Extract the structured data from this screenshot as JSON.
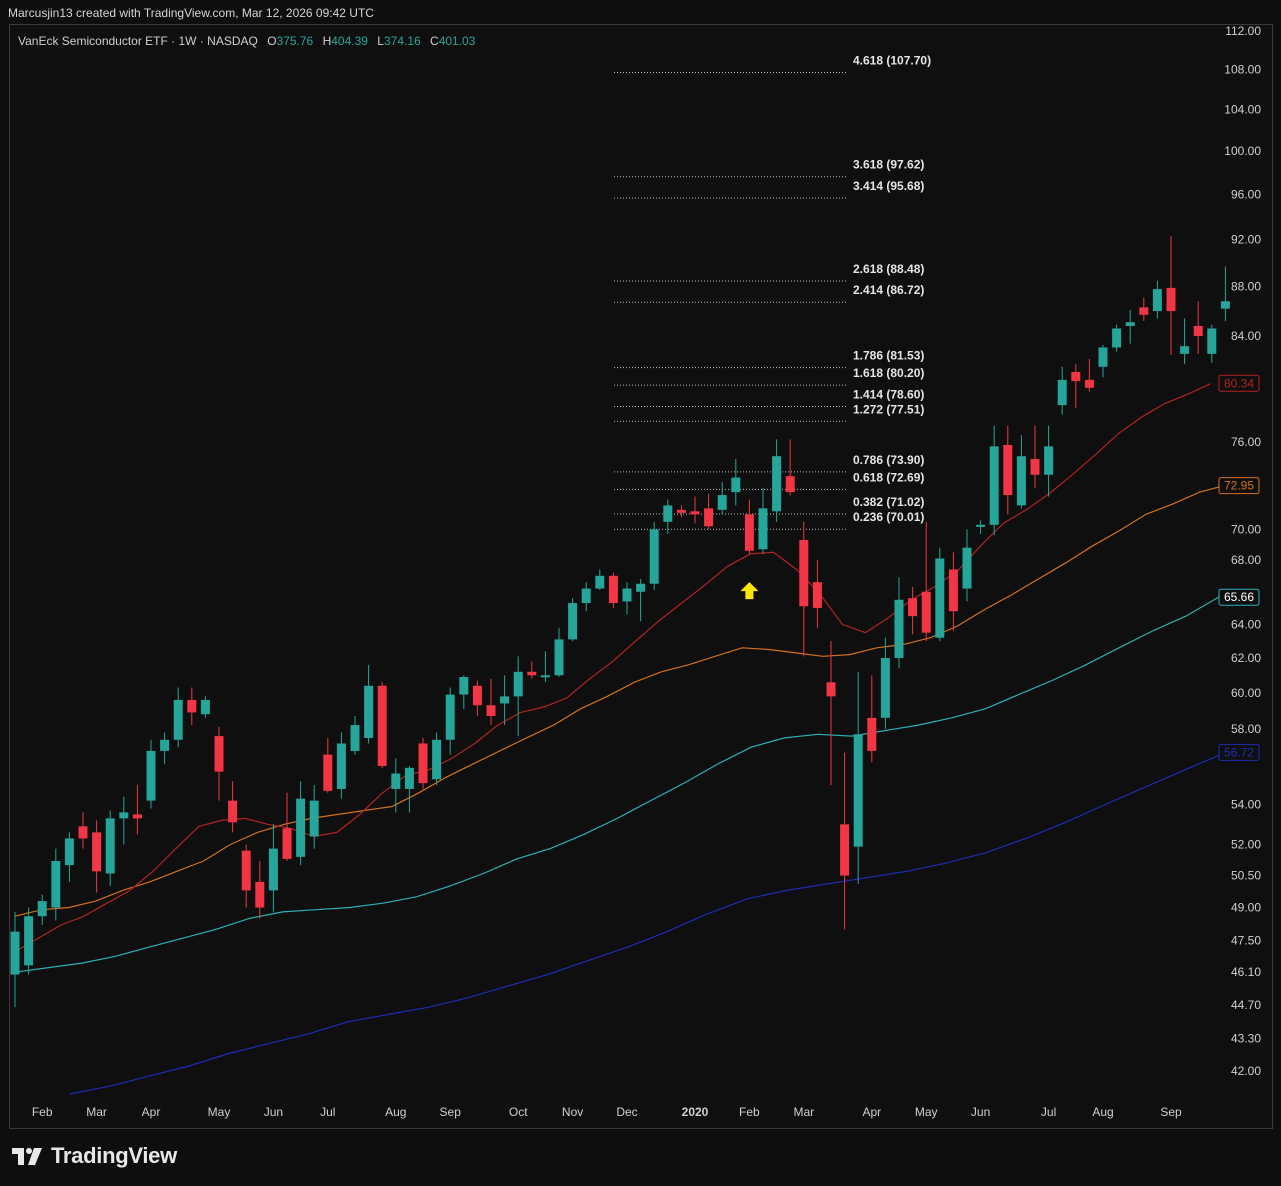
{
  "header": {
    "credit": "Marcusjin13 created with TradingView.com, Mar 12, 2026 09:42 UTC"
  },
  "symbol": {
    "title": "VanEck Semiconductor ETF · 1W · NASDAQ",
    "o_label": "O",
    "o_value": "375.76",
    "h_label": "H",
    "h_value": "404.39",
    "l_label": "L",
    "l_value": "374.16",
    "c_label": "C",
    "c_value": "401.03"
  },
  "logo": {
    "text": "TradingView",
    "icon": "tradingview-logo-icon"
  },
  "colors": {
    "up": "#26a69a",
    "down": "#f23645",
    "ema20": "#b22222",
    "ema50": "#d4701c",
    "ema100": "#2bb0b8",
    "ema200": "#1e2bb5",
    "arrow": "#ffe600"
  },
  "chart_data": {
    "type": "candlestick",
    "y_scale": "log",
    "ylim": [
      40.9,
      112.6
    ],
    "y_ticks": [
      "112.00",
      "108.00",
      "104.00",
      "100.00",
      "96.00",
      "92.00",
      "88.00",
      "84.00",
      "76.00",
      "70.00",
      "68.00",
      "64.00",
      "62.00",
      "60.00",
      "58.00",
      "54.00",
      "52.00",
      "50.50",
      "49.00",
      "47.50",
      "46.10",
      "44.70",
      "43.30",
      "42.00"
    ],
    "x_labels": [
      "Feb",
      "Mar",
      "Apr",
      "May",
      "Jun",
      "Jul",
      "Aug",
      "Sep",
      "Oct",
      "Nov",
      "Dec",
      "2020",
      "Feb",
      "Mar",
      "Apr",
      "May",
      "Jun",
      "Jul",
      "Aug",
      "Sep"
    ],
    "fib_levels": [
      {
        "label": "4.618 (107.70)",
        "value": 107.7
      },
      {
        "label": "3.618 (97.62)",
        "value": 97.62
      },
      {
        "label": "3.414 (95.68)",
        "value": 95.68
      },
      {
        "label": "2.618 (88.48)",
        "value": 88.48
      },
      {
        "label": "2.414 (86.72)",
        "value": 86.72
      },
      {
        "label": "1.786 (81.53)",
        "value": 81.53
      },
      {
        "label": "1.618 (80.20)",
        "value": 80.2
      },
      {
        "label": "1.414 (78.60)",
        "value": 78.6
      },
      {
        "label": "1.272 (77.51)",
        "value": 77.51
      },
      {
        "label": "0.786 (73.90)",
        "value": 73.9
      },
      {
        "label": "0.618 (72.69)",
        "value": 72.69
      },
      {
        "label": "0.382 (71.02)",
        "value": 71.02
      },
      {
        "label": "0.236 (70.01)",
        "value": 70.01
      }
    ],
    "ma_badges": [
      {
        "label": "80.34",
        "value": 80.34,
        "series": "ema20"
      },
      {
        "label": "72.95",
        "value": 72.95,
        "series": "ema50"
      },
      {
        "label": "65.66",
        "value": 65.66,
        "series": "ema100"
      },
      {
        "label": "56.72",
        "value": 56.72,
        "series": "ema200"
      }
    ],
    "candles": [
      {
        "o": 46.0,
        "h": 48.8,
        "l": 44.6,
        "c": 47.9
      },
      {
        "o": 46.4,
        "h": 49.0,
        "l": 46.0,
        "c": 48.6
      },
      {
        "o": 48.6,
        "h": 49.6,
        "l": 48.2,
        "c": 49.3
      },
      {
        "o": 49.0,
        "h": 51.8,
        "l": 48.4,
        "c": 51.2
      },
      {
        "o": 51.0,
        "h": 52.6,
        "l": 50.2,
        "c": 52.3
      },
      {
        "o": 52.9,
        "h": 53.6,
        "l": 51.8,
        "c": 52.3
      },
      {
        "o": 52.6,
        "h": 53.2,
        "l": 49.7,
        "c": 50.7
      },
      {
        "o": 50.6,
        "h": 53.7,
        "l": 50.0,
        "c": 53.3
      },
      {
        "o": 53.3,
        "h": 54.4,
        "l": 52.0,
        "c": 53.6
      },
      {
        "o": 53.5,
        "h": 55.0,
        "l": 52.5,
        "c": 53.3
      },
      {
        "o": 54.2,
        "h": 57.4,
        "l": 53.8,
        "c": 56.8
      },
      {
        "o": 56.8,
        "h": 57.8,
        "l": 56.1,
        "c": 57.4
      },
      {
        "o": 57.4,
        "h": 60.3,
        "l": 57.0,
        "c": 59.6
      },
      {
        "o": 59.6,
        "h": 60.3,
        "l": 58.2,
        "c": 58.9
      },
      {
        "o": 58.8,
        "h": 59.8,
        "l": 58.6,
        "c": 59.6
      },
      {
        "o": 57.6,
        "h": 58.1,
        "l": 54.2,
        "c": 55.7
      },
      {
        "o": 54.2,
        "h": 55.2,
        "l": 52.6,
        "c": 53.1
      },
      {
        "o": 51.7,
        "h": 52.0,
        "l": 49.0,
        "c": 49.8
      },
      {
        "o": 50.2,
        "h": 51.2,
        "l": 48.5,
        "c": 49.0
      },
      {
        "o": 49.8,
        "h": 53.0,
        "l": 48.8,
        "c": 51.8
      },
      {
        "o": 52.8,
        "h": 54.6,
        "l": 51.2,
        "c": 51.3
      },
      {
        "o": 51.4,
        "h": 55.2,
        "l": 51.0,
        "c": 54.3
      },
      {
        "o": 52.4,
        "h": 55.0,
        "l": 51.8,
        "c": 54.2
      },
      {
        "o": 56.6,
        "h": 57.5,
        "l": 54.6,
        "c": 54.7
      },
      {
        "o": 54.8,
        "h": 57.8,
        "l": 54.3,
        "c": 57.2
      },
      {
        "o": 56.8,
        "h": 58.7,
        "l": 56.6,
        "c": 58.2
      },
      {
        "o": 57.5,
        "h": 61.6,
        "l": 57.2,
        "c": 60.4
      },
      {
        "o": 60.4,
        "h": 60.6,
        "l": 55.9,
        "c": 56.0
      },
      {
        "o": 54.8,
        "h": 56.4,
        "l": 53.6,
        "c": 55.6
      },
      {
        "o": 54.8,
        "h": 56.0,
        "l": 53.6,
        "c": 55.9
      },
      {
        "o": 57.2,
        "h": 57.5,
        "l": 54.8,
        "c": 55.1
      },
      {
        "o": 55.3,
        "h": 57.8,
        "l": 55.0,
        "c": 57.4
      },
      {
        "o": 57.4,
        "h": 60.3,
        "l": 56.6,
        "c": 59.9
      },
      {
        "o": 59.9,
        "h": 61.0,
        "l": 59.1,
        "c": 60.9
      },
      {
        "o": 60.4,
        "h": 60.7,
        "l": 58.7,
        "c": 59.3
      },
      {
        "o": 59.3,
        "h": 60.8,
        "l": 58.2,
        "c": 58.7
      },
      {
        "o": 59.4,
        "h": 61.0,
        "l": 58.2,
        "c": 59.8
      },
      {
        "o": 59.8,
        "h": 62.1,
        "l": 57.6,
        "c": 61.2
      },
      {
        "o": 61.2,
        "h": 61.8,
        "l": 60.8,
        "c": 61.0
      },
      {
        "o": 61.0,
        "h": 62.4,
        "l": 60.6,
        "c": 61.0
      },
      {
        "o": 61.0,
        "h": 63.8,
        "l": 60.9,
        "c": 63.1
      },
      {
        "o": 63.1,
        "h": 65.6,
        "l": 63.0,
        "c": 65.3
      },
      {
        "o": 65.3,
        "h": 66.6,
        "l": 64.8,
        "c": 66.2
      },
      {
        "o": 66.2,
        "h": 67.4,
        "l": 66.1,
        "c": 67.0
      },
      {
        "o": 67.0,
        "h": 67.2,
        "l": 65.0,
        "c": 65.3
      },
      {
        "o": 65.4,
        "h": 66.6,
        "l": 64.6,
        "c": 66.2
      },
      {
        "o": 66.0,
        "h": 66.8,
        "l": 64.2,
        "c": 66.5
      },
      {
        "o": 66.5,
        "h": 70.5,
        "l": 66.1,
        "c": 70.0
      },
      {
        "o": 70.5,
        "h": 72.0,
        "l": 69.7,
        "c": 71.6
      },
      {
        "o": 71.3,
        "h": 71.6,
        "l": 70.8,
        "c": 71.1
      },
      {
        "o": 71.2,
        "h": 72.2,
        "l": 70.4,
        "c": 71.0
      },
      {
        "o": 71.4,
        "h": 72.4,
        "l": 70.0,
        "c": 70.2
      },
      {
        "o": 71.3,
        "h": 73.2,
        "l": 71.0,
        "c": 72.3
      },
      {
        "o": 72.5,
        "h": 74.8,
        "l": 71.6,
        "c": 73.5
      },
      {
        "o": 71.0,
        "h": 72.0,
        "l": 68.4,
        "c": 68.6
      },
      {
        "o": 68.7,
        "h": 72.8,
        "l": 68.4,
        "c": 71.4
      },
      {
        "o": 71.2,
        "h": 76.2,
        "l": 70.5,
        "c": 75.0
      },
      {
        "o": 73.6,
        "h": 76.2,
        "l": 72.3,
        "c": 72.5
      },
      {
        "o": 69.3,
        "h": 70.5,
        "l": 62.1,
        "c": 65.1
      },
      {
        "o": 66.6,
        "h": 68.0,
        "l": 63.8,
        "c": 65.0
      },
      {
        "o": 60.6,
        "h": 63.0,
        "l": 55.0,
        "c": 59.8
      },
      {
        "o": 53.0,
        "h": 56.7,
        "l": 48.0,
        "c": 50.5
      },
      {
        "o": 51.9,
        "h": 61.2,
        "l": 50.1,
        "c": 57.7
      },
      {
        "o": 58.6,
        "h": 61.0,
        "l": 56.2,
        "c": 56.8
      },
      {
        "o": 58.6,
        "h": 63.2,
        "l": 58.0,
        "c": 62.0
      },
      {
        "o": 62.0,
        "h": 66.9,
        "l": 61.4,
        "c": 65.5
      },
      {
        "o": 65.6,
        "h": 66.3,
        "l": 63.4,
        "c": 64.5
      },
      {
        "o": 66.0,
        "h": 70.5,
        "l": 63.0,
        "c": 63.5
      },
      {
        "o": 63.2,
        "h": 68.8,
        "l": 63.0,
        "c": 68.1
      },
      {
        "o": 67.4,
        "h": 68.5,
        "l": 63.6,
        "c": 64.8
      },
      {
        "o": 66.2,
        "h": 70.0,
        "l": 65.4,
        "c": 68.8
      },
      {
        "o": 70.3,
        "h": 70.6,
        "l": 69.7,
        "c": 70.3
      },
      {
        "o": 70.3,
        "h": 77.2,
        "l": 69.6,
        "c": 75.7
      },
      {
        "o": 75.8,
        "h": 77.2,
        "l": 71.0,
        "c": 72.3
      },
      {
        "o": 71.6,
        "h": 76.5,
        "l": 71.4,
        "c": 75.0
      },
      {
        "o": 74.8,
        "h": 77.2,
        "l": 72.8,
        "c": 73.7
      },
      {
        "o": 73.7,
        "h": 77.2,
        "l": 72.2,
        "c": 75.7
      },
      {
        "o": 78.7,
        "h": 81.6,
        "l": 78.0,
        "c": 80.6
      },
      {
        "o": 81.2,
        "h": 81.8,
        "l": 78.5,
        "c": 80.5
      },
      {
        "o": 80.6,
        "h": 82.2,
        "l": 79.7,
        "c": 80.0
      },
      {
        "o": 81.6,
        "h": 83.3,
        "l": 80.8,
        "c": 83.1
      },
      {
        "o": 83.1,
        "h": 84.9,
        "l": 82.8,
        "c": 84.6
      },
      {
        "o": 84.8,
        "h": 86.1,
        "l": 83.4,
        "c": 85.1
      },
      {
        "o": 86.3,
        "h": 87.1,
        "l": 85.2,
        "c": 85.7
      },
      {
        "o": 86.0,
        "h": 88.5,
        "l": 85.4,
        "c": 87.8
      },
      {
        "o": 87.9,
        "h": 92.3,
        "l": 82.5,
        "c": 86.0
      },
      {
        "o": 82.6,
        "h": 85.4,
        "l": 81.8,
        "c": 83.2
      },
      {
        "o": 84.8,
        "h": 86.8,
        "l": 82.6,
        "c": 84.0
      },
      {
        "o": 82.6,
        "h": 84.9,
        "l": 81.9,
        "c": 84.6
      },
      {
        "o": 86.2,
        "h": 89.7,
        "l": 85.2,
        "c": 86.8
      }
    ],
    "ema20": [
      47.0,
      47.6,
      48.2,
      48.6,
      49.2,
      49.8,
      50.7,
      51.8,
      52.9,
      53.2,
      53.3,
      53.0,
      52.8,
      52.4,
      52.6,
      53.5,
      54.6,
      55.5,
      55.8,
      56.4,
      57.2,
      58.2,
      58.9,
      59.2,
      59.7,
      60.8,
      61.8,
      63.0,
      64.2,
      65.3,
      66.4,
      67.6,
      68.4,
      68.5,
      67.4,
      65.9,
      64.0,
      63.5,
      64.4,
      65.5,
      66.3,
      67.3,
      68.9,
      70.4,
      71.3,
      72.4,
      73.7,
      75.1,
      76.6,
      77.8,
      78.8,
      79.5,
      80.3
    ],
    "ema50": [
      48.6,
      48.9,
      49.0,
      49.3,
      49.8,
      50.2,
      50.7,
      51.2,
      52.0,
      52.6,
      53.0,
      53.3,
      53.5,
      53.7,
      53.9,
      54.6,
      55.4,
      56.1,
      56.8,
      57.5,
      58.2,
      59.1,
      59.8,
      60.6,
      61.2,
      61.6,
      62.1,
      62.6,
      62.5,
      62.3,
      62.1,
      62.2,
      62.6,
      62.8,
      63.2,
      63.9,
      64.9,
      65.8,
      66.8,
      67.8,
      68.9,
      69.9,
      71.0,
      71.7,
      72.5,
      73.0
    ],
    "ema100": [
      46.1,
      46.3,
      46.5,
      46.8,
      47.2,
      47.6,
      48.0,
      48.5,
      48.8,
      48.9,
      49.0,
      49.2,
      49.5,
      50.0,
      50.6,
      51.3,
      51.8,
      52.5,
      53.3,
      54.2,
      55.1,
      56.1,
      57.0,
      57.5,
      57.7,
      57.6,
      57.9,
      58.2,
      58.6,
      59.1,
      59.9,
      60.7,
      61.6,
      62.6,
      63.6,
      64.5,
      65.7
    ],
    "ema200": [
      41.1,
      41.4,
      41.8,
      42.2,
      42.7,
      43.1,
      43.5,
      44.0,
      44.3,
      44.6,
      45.0,
      45.5,
      46.0,
      46.6,
      47.2,
      47.9,
      48.7,
      49.4,
      49.8,
      50.1,
      50.4,
      50.7,
      51.1,
      51.6,
      52.3,
      53.1,
      54.0,
      54.9,
      55.8,
      56.7
    ]
  }
}
